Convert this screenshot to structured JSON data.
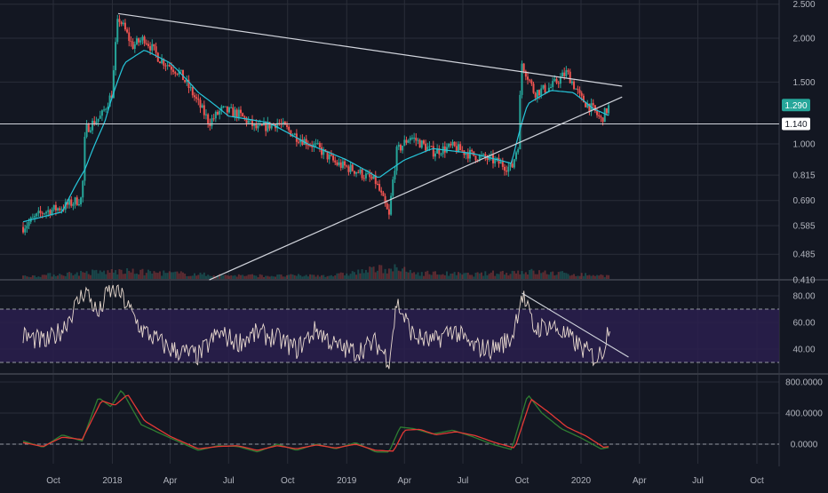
{
  "chart_data": [
    {
      "type": "candlestick",
      "title": "",
      "y_scale": "log",
      "ylim": [
        0.41,
        2.5
      ],
      "y_ticks": [
        "2.500",
        "2.000",
        "1.500",
        "1.000",
        "0.815",
        "0.690",
        "0.585",
        "0.485",
        "0.410"
      ],
      "price_labels": [
        {
          "text": "1.290",
          "value": 1.29,
          "color": "#26a69a"
        },
        {
          "text": "1.140",
          "value": 1.14,
          "color": "#ffffff"
        }
      ],
      "x_ticks": [
        "Oct",
        "2018",
        "Apr",
        "Jul",
        "Oct",
        "2019",
        "Apr",
        "Jul",
        "Oct",
        "2020",
        "Apr",
        "Jul",
        "Oct"
      ],
      "series": [
        {
          "kind": "price",
          "points": [
            [
              "2017-08-15",
              0.58
            ],
            [
              "2017-09-15",
              0.64
            ],
            [
              "2017-10-15",
              0.66
            ],
            [
              "2017-11-15",
              0.7
            ],
            [
              "2017-11-20",
              1.1
            ],
            [
              "2017-12-15",
              1.2
            ],
            [
              "2018-01-01",
              1.4
            ],
            [
              "2018-01-10",
              2.3
            ],
            [
              "2018-02-01",
              1.9
            ],
            [
              "2018-02-20",
              2.0
            ],
            [
              "2018-03-15",
              1.75
            ],
            [
              "2018-04-15",
              1.6
            ],
            [
              "2018-05-15",
              1.3
            ],
            [
              "2018-06-01",
              1.15
            ],
            [
              "2018-06-20",
              1.25
            ],
            [
              "2018-07-15",
              1.22
            ],
            [
              "2018-08-15",
              1.1
            ],
            [
              "2018-09-15",
              1.15
            ],
            [
              "2018-10-15",
              1.05
            ],
            [
              "2018-11-15",
              0.98
            ],
            [
              "2018-12-15",
              0.88
            ],
            [
              "2019-01-15",
              0.84
            ],
            [
              "2019-02-15",
              0.78
            ],
            [
              "2019-03-08",
              0.62
            ],
            [
              "2019-03-20",
              0.95
            ],
            [
              "2019-04-10",
              1.05
            ],
            [
              "2019-05-15",
              0.95
            ],
            [
              "2019-06-15",
              0.98
            ],
            [
              "2019-07-15",
              0.93
            ],
            [
              "2019-08-15",
              0.9
            ],
            [
              "2019-09-15",
              0.85
            ],
            [
              "2019-09-25",
              1.0
            ],
            [
              "2019-10-01",
              1.7
            ],
            [
              "2019-10-20",
              1.4
            ],
            [
              "2019-11-15",
              1.45
            ],
            [
              "2019-12-10",
              1.6
            ],
            [
              "2019-12-31",
              1.35
            ],
            [
              "2020-01-20",
              1.25
            ],
            [
              "2020-02-01",
              1.17
            ],
            [
              "2020-02-15",
              1.29
            ]
          ]
        },
        {
          "kind": "moving-average",
          "color": "#26c6da",
          "points": [
            [
              "2017-08-15",
              0.6
            ],
            [
              "2017-10-15",
              0.64
            ],
            [
              "2017-11-20",
              0.85
            ],
            [
              "2017-12-20",
              1.15
            ],
            [
              "2018-01-20",
              1.7
            ],
            [
              "2018-02-20",
              1.85
            ],
            [
              "2018-04-01",
              1.7
            ],
            [
              "2018-05-15",
              1.4
            ],
            [
              "2018-07-01",
              1.2
            ],
            [
              "2018-09-01",
              1.15
            ],
            [
              "2018-11-01",
              1.0
            ],
            [
              "2019-01-01",
              0.9
            ],
            [
              "2019-02-20",
              0.8
            ],
            [
              "2019-04-01",
              0.9
            ],
            [
              "2019-05-15",
              0.97
            ],
            [
              "2019-07-15",
              0.94
            ],
            [
              "2019-09-15",
              0.88
            ],
            [
              "2019-10-10",
              1.3
            ],
            [
              "2019-11-15",
              1.42
            ],
            [
              "2019-12-20",
              1.4
            ],
            [
              "2020-01-20",
              1.26
            ],
            [
              "2020-02-15",
              1.2
            ]
          ]
        },
        {
          "kind": "trendline-upper",
          "points": [
            [
              "2018-01-10",
              2.35
            ],
            [
              "2020-03-05",
              1.46
            ]
          ]
        },
        {
          "kind": "trendline-lower",
          "points": [
            [
              "2018-06-01",
              0.41
            ],
            [
              "2020-03-05",
              1.36
            ]
          ]
        },
        {
          "kind": "horizontal-line",
          "value": 1.14
        }
      ],
      "volume": [
        [
          "2017-08-15",
          0.2
        ],
        [
          "2017-11-20",
          0.5
        ],
        [
          "2018-01-10",
          0.6
        ],
        [
          "2018-03-15",
          0.5
        ],
        [
          "2018-06-15",
          0.3
        ],
        [
          "2018-09-15",
          0.25
        ],
        [
          "2018-12-15",
          0.3
        ],
        [
          "2019-03-08",
          0.9
        ],
        [
          "2019-04-15",
          0.5
        ],
        [
          "2019-07-15",
          0.35
        ],
        [
          "2019-10-01",
          0.6
        ],
        [
          "2019-12-15",
          0.4
        ],
        [
          "2020-02-15",
          0.25
        ]
      ]
    },
    {
      "type": "line",
      "name": "rsi",
      "ylim": [
        20,
        90
      ],
      "y_ticks": [
        "80.00",
        "60.00",
        "40.00"
      ],
      "band": [
        30,
        70
      ],
      "points": [
        [
          "2017-08-15",
          50
        ],
        [
          "2017-09-20",
          45
        ],
        [
          "2017-10-15",
          55
        ],
        [
          "2017-11-20",
          85
        ],
        [
          "2017-12-10",
          65
        ],
        [
          "2017-12-25",
          83
        ],
        [
          "2018-01-10",
          84
        ],
        [
          "2018-02-15",
          55
        ],
        [
          "2018-04-01",
          40
        ],
        [
          "2018-05-15",
          35
        ],
        [
          "2018-06-15",
          52
        ],
        [
          "2018-07-15",
          45
        ],
        [
          "2018-08-15",
          52
        ],
        [
          "2018-09-15",
          48
        ],
        [
          "2018-10-15",
          40
        ],
        [
          "2018-11-15",
          55
        ],
        [
          "2018-12-15",
          42
        ],
        [
          "2019-01-15",
          38
        ],
        [
          "2019-02-15",
          45
        ],
        [
          "2019-03-08",
          32
        ],
        [
          "2019-03-20",
          75
        ],
        [
          "2019-04-15",
          50
        ],
        [
          "2019-05-15",
          45
        ],
        [
          "2019-06-15",
          55
        ],
        [
          "2019-07-15",
          42
        ],
        [
          "2019-08-15",
          40
        ],
        [
          "2019-09-15",
          48
        ],
        [
          "2019-10-01",
          82
        ],
        [
          "2019-10-20",
          55
        ],
        [
          "2019-11-15",
          58
        ],
        [
          "2019-12-15",
          48
        ],
        [
          "2020-01-10",
          38
        ],
        [
          "2020-01-25",
          33
        ],
        [
          "2020-02-05",
          40
        ],
        [
          "2020-02-15",
          61
        ]
      ],
      "trendline": [
        [
          "2019-10-01",
          82
        ],
        [
          "2020-03-15",
          34
        ]
      ]
    },
    {
      "type": "line",
      "name": "oscillator",
      "ylim": [
        -150,
        900
      ],
      "y_ticks": [
        "800.0000",
        "400.0000",
        "0.0000"
      ],
      "series": [
        {
          "name": "fast",
          "color": "#2e7d32",
          "points": [
            [
              "2017-08-15",
              40
            ],
            [
              "2017-09-15",
              -40
            ],
            [
              "2017-10-15",
              120
            ],
            [
              "2017-11-15",
              40
            ],
            [
              "2017-12-10",
              600
            ],
            [
              "2017-12-30",
              480
            ],
            [
              "2018-01-15",
              700
            ],
            [
              "2018-02-15",
              250
            ],
            [
              "2018-04-01",
              80
            ],
            [
              "2018-05-15",
              -80
            ],
            [
              "2018-06-15",
              -20
            ],
            [
              "2018-07-15",
              -30
            ],
            [
              "2018-08-15",
              -100
            ],
            [
              "2018-09-15",
              0
            ],
            [
              "2018-10-15",
              -80
            ],
            [
              "2018-11-15",
              0
            ],
            [
              "2018-12-15",
              -60
            ],
            [
              "2019-01-15",
              20
            ],
            [
              "2019-02-15",
              -100
            ],
            [
              "2019-03-08",
              -100
            ],
            [
              "2019-03-25",
              220
            ],
            [
              "2019-04-15",
              200
            ],
            [
              "2019-05-15",
              130
            ],
            [
              "2019-06-15",
              180
            ],
            [
              "2019-07-15",
              100
            ],
            [
              "2019-08-15",
              0
            ],
            [
              "2019-09-15",
              -70
            ],
            [
              "2019-10-10",
              640
            ],
            [
              "2019-11-01",
              400
            ],
            [
              "2019-12-01",
              200
            ],
            [
              "2020-01-01",
              80
            ],
            [
              "2020-02-01",
              -60
            ],
            [
              "2020-02-15",
              -40
            ]
          ]
        },
        {
          "name": "slow",
          "color": "#e53935",
          "points": [
            [
              "2017-08-15",
              20
            ],
            [
              "2017-09-15",
              -30
            ],
            [
              "2017-10-15",
              90
            ],
            [
              "2017-11-15",
              60
            ],
            [
              "2017-12-15",
              560
            ],
            [
              "2018-01-05",
              500
            ],
            [
              "2018-01-25",
              640
            ],
            [
              "2018-02-20",
              300
            ],
            [
              "2018-04-01",
              100
            ],
            [
              "2018-05-15",
              -60
            ],
            [
              "2018-06-15",
              -30
            ],
            [
              "2018-07-15",
              -20
            ],
            [
              "2018-08-15",
              -80
            ],
            [
              "2018-09-15",
              -20
            ],
            [
              "2018-10-15",
              -60
            ],
            [
              "2018-11-15",
              -10
            ],
            [
              "2018-12-15",
              -50
            ],
            [
              "2019-01-15",
              0
            ],
            [
              "2019-02-15",
              -80
            ],
            [
              "2019-03-15",
              -90
            ],
            [
              "2019-04-01",
              180
            ],
            [
              "2019-04-25",
              190
            ],
            [
              "2019-05-20",
              120
            ],
            [
              "2019-06-20",
              160
            ],
            [
              "2019-07-20",
              110
            ],
            [
              "2019-08-20",
              20
            ],
            [
              "2019-09-20",
              -50
            ],
            [
              "2019-10-15",
              580
            ],
            [
              "2019-11-10",
              420
            ],
            [
              "2019-12-10",
              220
            ],
            [
              "2020-01-10",
              100
            ],
            [
              "2020-02-05",
              -40
            ],
            [
              "2020-02-15",
              -30
            ]
          ]
        }
      ]
    }
  ],
  "colors": {
    "background": "#131722",
    "grid": "#2a2e39",
    "up": "#26a69a",
    "down": "#ef5350",
    "rsi_band": "#2a1f4d",
    "rsi_line": "#e8d9ce",
    "drawing": "#d1d4dc"
  }
}
